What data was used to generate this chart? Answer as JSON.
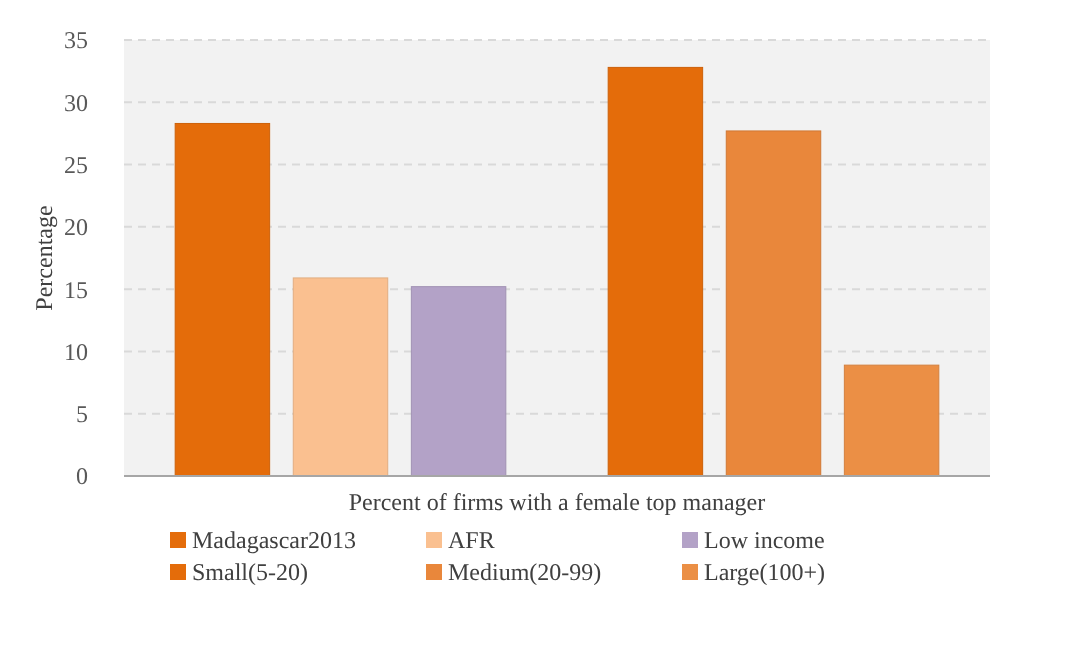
{
  "chart_data": {
    "type": "bar",
    "xlabel": "Percent of firms with a female top manager",
    "ylabel": "Percentage",
    "categories": [
      null,
      null
    ],
    "series": [
      {
        "name": "Madagascar2013",
        "color": "#e46c0a",
        "values": [
          28.3,
          null
        ]
      },
      {
        "name": "AFR",
        "color": "#fac090",
        "values": [
          15.9,
          null
        ]
      },
      {
        "name": "Low income",
        "color": "#b3a2c7",
        "values": [
          15.2,
          null
        ]
      },
      {
        "name": "Small(5-20)",
        "color": "#e46c0a",
        "values": [
          null,
          32.8
        ]
      },
      {
        "name": "Medium(20-99)",
        "color": "#e9873b",
        "values": [
          null,
          27.7
        ]
      },
      {
        "name": "Large(100+)",
        "color": "#eb8f45",
        "values": [
          null,
          8.9
        ]
      }
    ],
    "ylim": [
      0,
      35
    ],
    "yticks": [
      0,
      5,
      10,
      15,
      20,
      25,
      30,
      35
    ],
    "grid": "y",
    "legend": "bottom"
  }
}
